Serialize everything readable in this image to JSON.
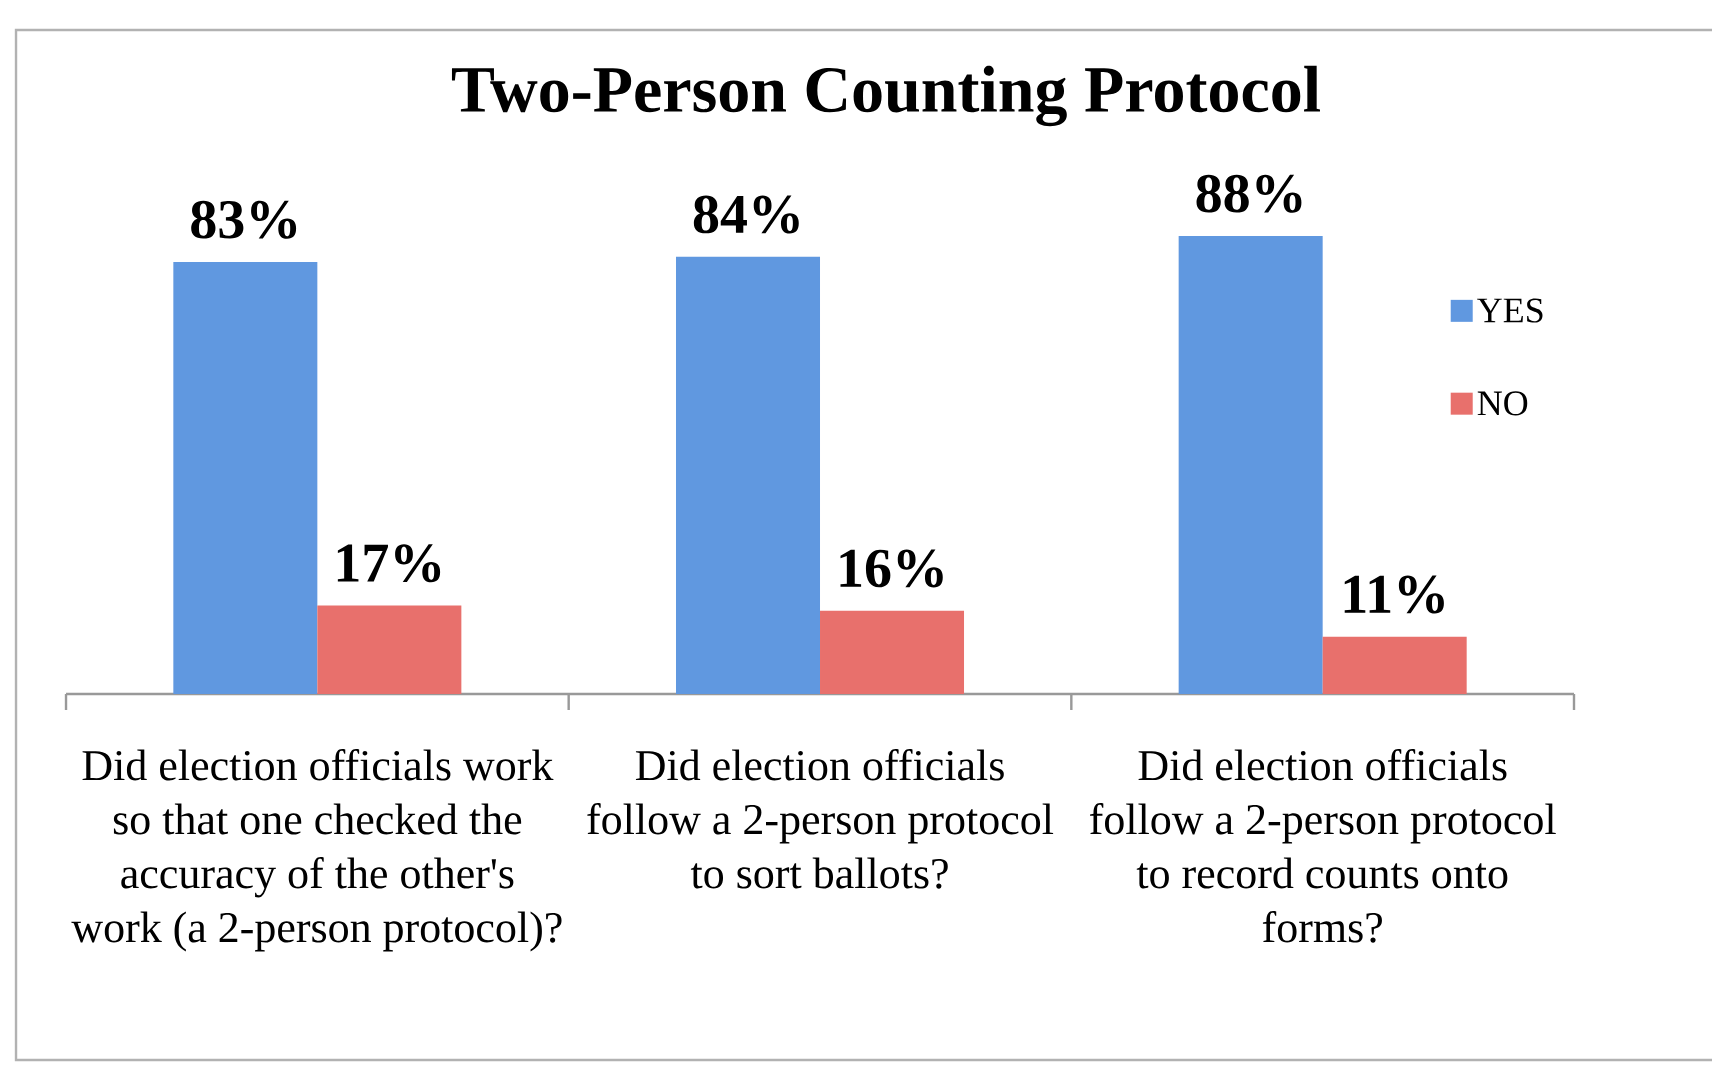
{
  "chart_data": {
    "type": "bar",
    "title": "Two-Person Counting Protocol",
    "categories": [
      "Did election officials work so that one checked the accuracy of the other's work (a 2-person protocol)?",
      "Did election officials follow a 2-person protocol to sort ballots?",
      "Did election officials follow a 2-person protocol to record counts onto forms?"
    ],
    "series": [
      {
        "name": "YES",
        "color": "#6098e0",
        "values": [
          83,
          84,
          88
        ],
        "value_labels": [
          "83%",
          "84%",
          "88%"
        ]
      },
      {
        "name": "NO",
        "color": "#e8706c",
        "values": [
          17,
          16,
          11
        ],
        "value_labels": [
          "17%",
          "16%",
          "11%"
        ]
      }
    ],
    "legend": "right"
  }
}
